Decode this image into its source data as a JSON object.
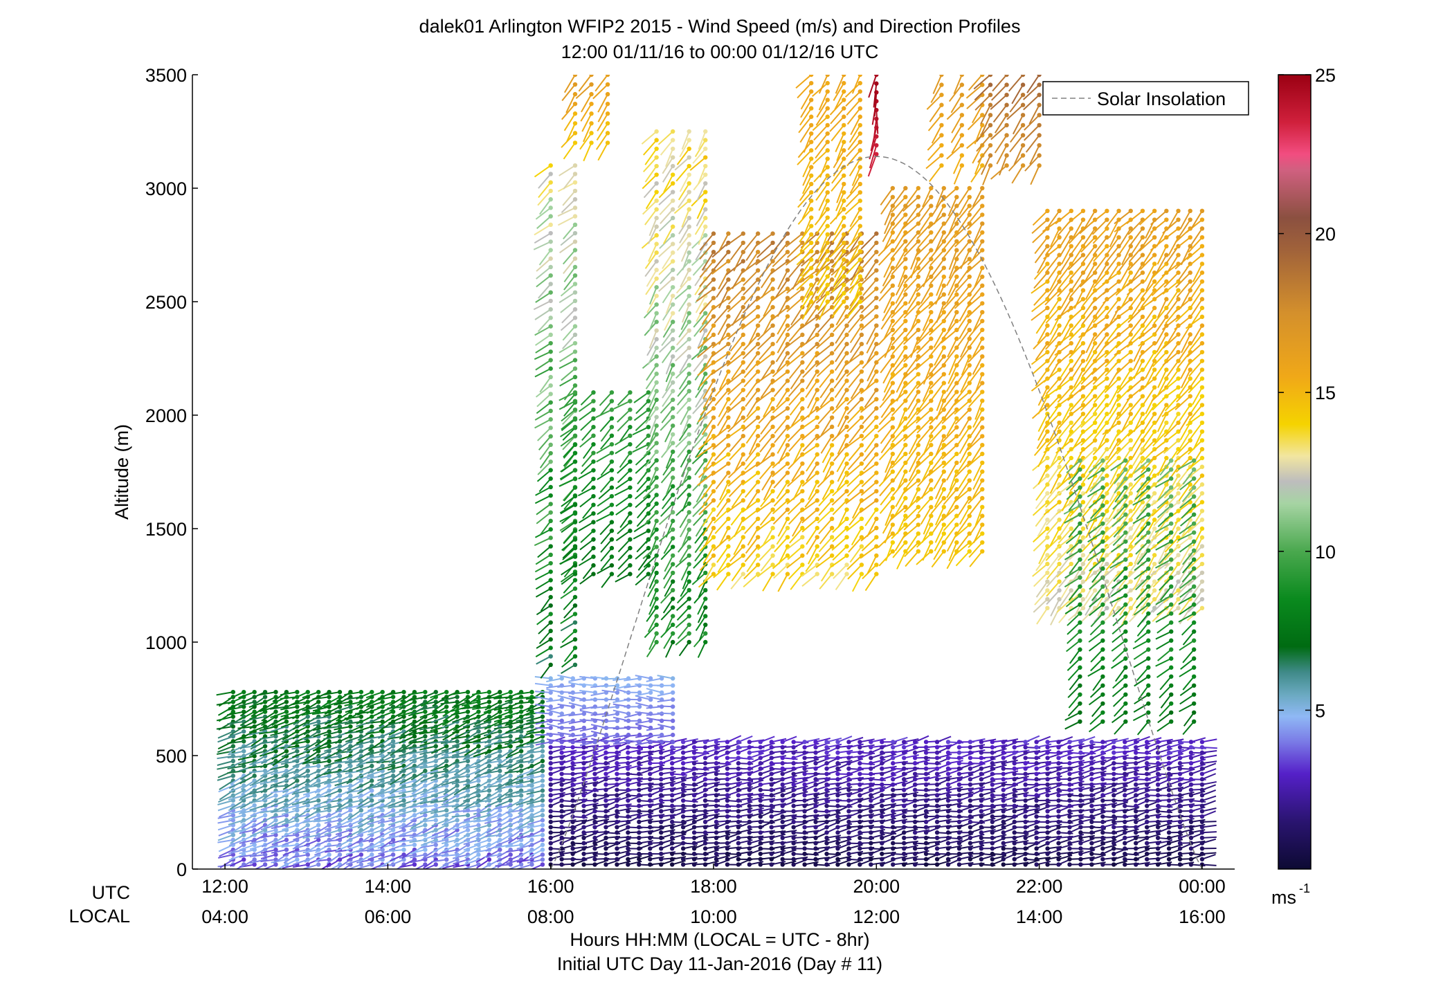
{
  "chart_data": {
    "type": "scatter",
    "title": "dalek01 Arlington WFIP2 2015 - Wind Speed (m/s) and Direction Profiles",
    "subtitle": "12:00 01/11/16 to 00:00 01/12/16  UTC",
    "ylabel": "Altitude (m)",
    "xlabel": "Hours HH:MM  (LOCAL = UTC - 8hr)",
    "xlabel2": "Initial UTC Day 11-Jan-2016 (Day # 11)",
    "x_row_labels": {
      "utc": "UTC",
      "local": "LOCAL"
    },
    "xlim": [
      11.6,
      24.4
    ],
    "ylim": [
      0,
      3500
    ],
    "x_ticks": [
      {
        "x": 12,
        "utc": "12:00",
        "local": "04:00"
      },
      {
        "x": 14,
        "utc": "14:00",
        "local": "06:00"
      },
      {
        "x": 16,
        "utc": "16:00",
        "local": "08:00"
      },
      {
        "x": 18,
        "utc": "18:00",
        "local": "10:00"
      },
      {
        "x": 20,
        "utc": "20:00",
        "local": "12:00"
      },
      {
        "x": 22,
        "utc": "22:00",
        "local": "14:00"
      },
      {
        "x": 24,
        "utc": "00:00",
        "local": "16:00"
      }
    ],
    "y_ticks": [
      {
        "v": 0,
        "label": "0"
      },
      {
        "v": 500,
        "label": "500"
      },
      {
        "v": 1000,
        "label": "1000"
      },
      {
        "v": 1500,
        "label": "1500"
      },
      {
        "v": 2000,
        "label": "2000"
      },
      {
        "v": 2500,
        "label": "2500"
      },
      {
        "v": 3000,
        "label": "3000"
      },
      {
        "v": 3500,
        "label": "3500"
      }
    ],
    "legend": {
      "label": "Solar Insolation",
      "position": "top-right",
      "style": "dashed",
      "color": "#808080"
    },
    "colorbar": {
      "range": [
        0,
        25
      ],
      "unit_label": "ms",
      "unit_exponent": "-1",
      "ticks": [
        {
          "v": 5,
          "label": "5"
        },
        {
          "v": 10,
          "label": "10"
        },
        {
          "v": 15,
          "label": "15"
        },
        {
          "v": 20,
          "label": "20"
        },
        {
          "v": 25,
          "label": "25"
        }
      ],
      "stops": [
        [
          0,
          "#0d0a33"
        ],
        [
          1.5,
          "#2a1470"
        ],
        [
          3,
          "#5520c8"
        ],
        [
          4,
          "#7a7ae6"
        ],
        [
          4.8,
          "#8fb8f5"
        ],
        [
          5.5,
          "#6aa9c0"
        ],
        [
          6.2,
          "#3f8a88"
        ],
        [
          7,
          "#006b12"
        ],
        [
          8.5,
          "#0a8a1e"
        ],
        [
          10,
          "#4aa84e"
        ],
        [
          11.5,
          "#a6d4a3"
        ],
        [
          12.2,
          "#bdbdbd"
        ],
        [
          13,
          "#f2e6a0"
        ],
        [
          14,
          "#f5d300"
        ],
        [
          15.5,
          "#f0a818"
        ],
        [
          17.5,
          "#d4902c"
        ],
        [
          19.5,
          "#a0623a"
        ],
        [
          20.5,
          "#8b5040"
        ],
        [
          22,
          "#d06080"
        ],
        [
          22.5,
          "#f24d80"
        ],
        [
          23.5,
          "#d0203c"
        ],
        [
          25,
          "#9a0012"
        ]
      ]
    },
    "solar_insolation": {
      "start_x": 16.0,
      "end_x": 24.0,
      "peak_x": 20.0,
      "peak_y": 3140,
      "note": "dashed curve, plotted in altitude units"
    },
    "barb_profiles": [
      {
        "x_range": [
          12.1,
          15.9
        ],
        "y_range": [
          20,
          780
        ],
        "speed_range": [
          3,
          8.5
        ],
        "cols": 30,
        "rows": 36,
        "dir_deg": 250
      },
      {
        "x_range": [
          16.0,
          24.0
        ],
        "y_range": [
          20,
          560
        ],
        "speed_range": [
          0.3,
          3.5
        ],
        "cols": 60,
        "rows": 24,
        "dir_deg": 80
      },
      {
        "x_range": [
          16.0,
          17.5
        ],
        "y_range": [
          560,
          840
        ],
        "speed_range": [
          3.5,
          5
        ],
        "cols": 12,
        "rows": 10,
        "dir_deg": 270
      },
      {
        "x_range": [
          16.0,
          16.3
        ],
        "y_range": [
          900,
          3100
        ],
        "speed_range": [
          6,
          14
        ],
        "cols": 2,
        "rows": 60,
        "dir_deg": 230
      },
      {
        "x_range": [
          16.3,
          17.2
        ],
        "y_range": [
          1300,
          2100
        ],
        "speed_range": [
          7,
          10
        ],
        "cols": 5,
        "rows": 22,
        "dir_deg": 230
      },
      {
        "x_range": [
          16.3,
          16.7
        ],
        "y_range": [
          3200,
          3500
        ],
        "speed_range": [
          14,
          17
        ],
        "cols": 3,
        "rows": 8,
        "dir_deg": 215
      },
      {
        "x_range": [
          17.3,
          17.9
        ],
        "y_range": [
          1000,
          3250
        ],
        "speed_range": [
          7,
          15
        ],
        "cols": 4,
        "rows": 60,
        "dir_deg": 215
      },
      {
        "x_range": [
          18.0,
          20.0
        ],
        "y_range": [
          1300,
          2800
        ],
        "speed_range": [
          13,
          19
        ],
        "cols": 12,
        "rows": 38,
        "dir_deg": 220
      },
      {
        "x_range": [
          19.2,
          19.8
        ],
        "y_range": [
          2500,
          3500
        ],
        "speed_range": [
          14,
          16
        ],
        "cols": 4,
        "rows": 28,
        "dir_deg": 215
      },
      {
        "x_range": [
          20.0,
          20.05
        ],
        "y_range": [
          3150,
          3500
        ],
        "speed_range": [
          23.5,
          25
        ],
        "cols": 1,
        "rows": 10,
        "dir_deg": 190
      },
      {
        "x_range": [
          20.2,
          21.3
        ],
        "y_range": [
          1400,
          3000
        ],
        "speed_range": [
          14,
          17
        ],
        "cols": 8,
        "rows": 42,
        "dir_deg": 215
      },
      {
        "x_range": [
          20.8,
          21.3
        ],
        "y_range": [
          3100,
          3500
        ],
        "speed_range": [
          15,
          17
        ],
        "cols": 3,
        "rows": 10,
        "dir_deg": 215
      },
      {
        "x_range": [
          21.4,
          22.0
        ],
        "y_range": [
          3100,
          3500
        ],
        "speed_range": [
          17,
          19.5
        ],
        "cols": 4,
        "rows": 10,
        "dir_deg": 215
      },
      {
        "x_range": [
          22.1,
          24.0
        ],
        "y_range": [
          1150,
          2900
        ],
        "speed_range": [
          12,
          17
        ],
        "cols": 14,
        "rows": 46,
        "dir_deg": 220
      },
      {
        "x_range": [
          22.5,
          23.9
        ],
        "y_range": [
          650,
          1800
        ],
        "speed_range": [
          7,
          11
        ],
        "cols": 6,
        "rows": 30,
        "dir_deg": 230
      }
    ]
  }
}
